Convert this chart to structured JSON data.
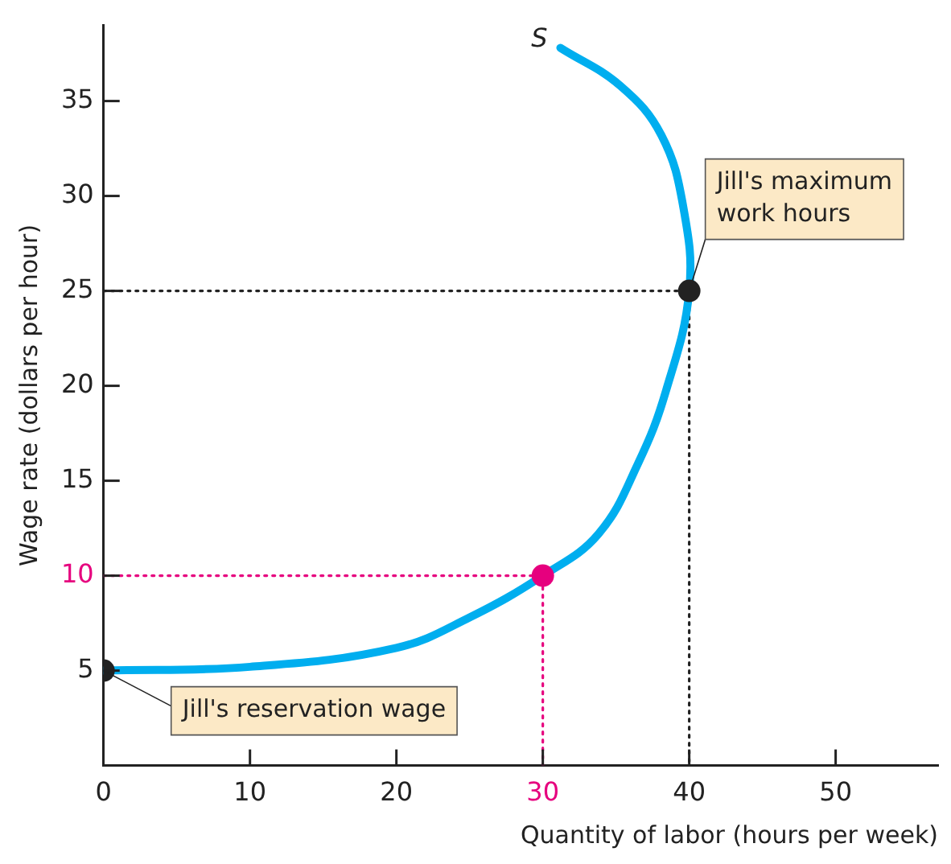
{
  "chart_data": {
    "type": "line",
    "xlabel": "Quantity of labor (hours per week)",
    "ylabel": "Wage rate (dollars per hour)",
    "xlim": [
      0,
      57
    ],
    "ylim": [
      0,
      39
    ],
    "xticks": [
      0,
      10,
      20,
      30,
      40,
      50
    ],
    "yticks": [
      5,
      10,
      15,
      20,
      25,
      30,
      35
    ],
    "grid": false,
    "legend": false,
    "series": [
      {
        "color": "#222222",
        "line_style": "dotted",
        "x": [
          0,
          40,
          40
        ],
        "values": [
          25,
          25,
          0
        ]
      },
      {
        "color": "#e6007e",
        "line_style": "dotted",
        "x": [
          0,
          30,
          30
        ],
        "values": [
          10,
          10,
          0
        ]
      },
      {
        "name": "S",
        "color": "#00aeef",
        "line_style": "solid",
        "x": [
          0,
          10,
          20,
          25,
          30,
          33.8,
          36.5,
          38.4,
          40,
          39.6,
          38.1,
          35.3,
          31.2
        ],
        "values": [
          5,
          5.2,
          6.2,
          7.8,
          10,
          12.2,
          15.9,
          19.7,
          25,
          29.4,
          33.2,
          35.8,
          37.8
        ]
      },
      {
        "type": "scatter",
        "marker": "circle",
        "color": "#222222",
        "colors": [
          "#222222",
          "#e6007e",
          "#222222"
        ],
        "x": [
          0,
          30,
          40
        ],
        "values": [
          5,
          10,
          25
        ]
      }
    ],
    "annotations": [
      {
        "text": "Jill's reservation wage",
        "x": 0,
        "y": 5
      },
      {
        "text": "Jill's maximum work hours",
        "x": 40,
        "y": 25
      }
    ]
  }
}
